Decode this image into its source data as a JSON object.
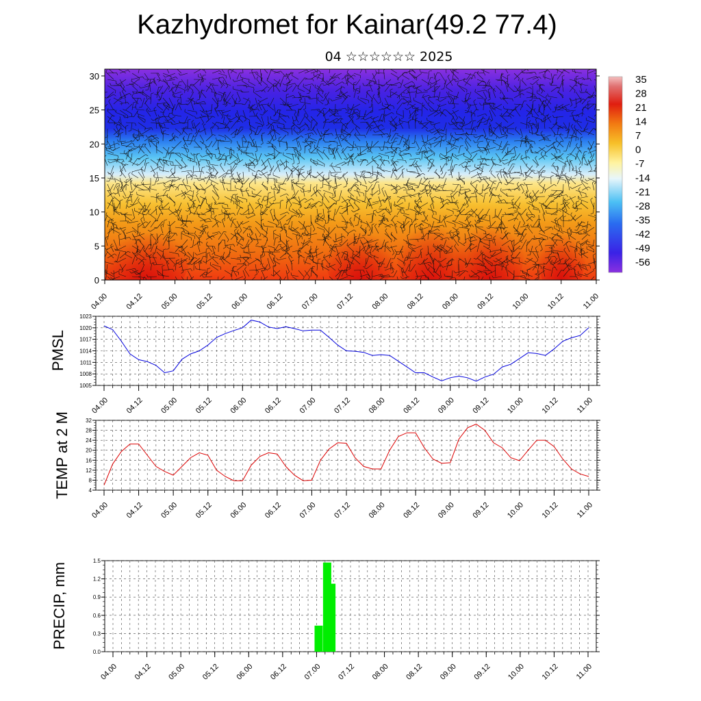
{
  "title": "Kazhydromet for Kainar(49.2 77.4)",
  "subtitle": "04 ☆☆☆☆☆☆ 2025",
  "time_labels": [
    "04.00",
    "04.12",
    "05.00",
    "05.12",
    "06.00",
    "06.12",
    "07.00",
    "07.12",
    "08.00",
    "08.12",
    "09.00",
    "09.12",
    "10.00",
    "10.12",
    "11.00"
  ],
  "chart_data": [
    {
      "type": "heatmap",
      "description_key": "vertical cross-section temperature with wind barbs",
      "y_ticks": [
        0,
        5,
        10,
        15,
        20,
        25,
        30
      ],
      "ylim": [
        0,
        31
      ],
      "colorbar_labels": [
        "35",
        "28",
        "21",
        "14",
        "7",
        "0",
        "-7",
        "-14",
        "-21",
        "-28",
        "-35",
        "-42",
        "-49",
        "-56"
      ],
      "x_tick_labels": [
        "04.00",
        "04.12",
        "05.00",
        "05.12",
        "06.00",
        "06.12",
        "07.00",
        "07.12",
        "08.00",
        "08.12",
        "09.00",
        "09.12",
        "10.00",
        "10.12",
        "11.00"
      ]
    },
    {
      "type": "line",
      "ylabel": "PMSL",
      "ylim": [
        1005,
        1023
      ],
      "y_ticks": [
        "1005",
        "1008",
        "1011",
        "1014",
        "1017",
        "1020",
        "1023"
      ],
      "color": "#0000dd",
      "x_tick_labels": [
        "04.00",
        "04.12",
        "05.00",
        "05.12",
        "06.00",
        "06.12",
        "07.00",
        "07.12",
        "08.00",
        "08.12",
        "09.00",
        "09.12",
        "10.00",
        "10.12",
        "11.00"
      ],
      "values": [
        1020.5,
        1019.5,
        1016.5,
        1013.2,
        1011.7,
        1011.2,
        1010.2,
        1008.3,
        1008.8,
        1011.8,
        1013.2,
        1014.0,
        1015.5,
        1017.5,
        1018.5,
        1019.3,
        1020.0,
        1022.0,
        1021.5,
        1020.2,
        1019.8,
        1020.3,
        1019.8,
        1019.2,
        1019.4,
        1019.4,
        1017.5,
        1015.5,
        1014.0,
        1013.9,
        1013.6,
        1012.8,
        1013.0,
        1012.8,
        1011.3,
        1009.8,
        1008.3,
        1008.3,
        1007.2,
        1006.2,
        1007.0,
        1007.4,
        1007.0,
        1006.1,
        1007.2,
        1007.9,
        1009.8,
        1010.5,
        1012.0,
        1013.5,
        1013.3,
        1012.8,
        1014.5,
        1016.5,
        1017.4,
        1018.0,
        1020.0
      ]
    },
    {
      "type": "line",
      "ylabel": "TEMP at 2 M",
      "ylim": [
        4,
        32
      ],
      "y_ticks": [
        "4",
        "8",
        "12",
        "16",
        "20",
        "24",
        "28",
        "32"
      ],
      "color": "#dd0000",
      "x_tick_labels": [
        "04.00",
        "04.12",
        "05.00",
        "05.12",
        "06.00",
        "06.12",
        "07.00",
        "07.12",
        "08.00",
        "08.12",
        "09.00",
        "09.12",
        "10.00",
        "10.12",
        "11.00"
      ],
      "values": [
        6,
        14.5,
        19.5,
        22.5,
        22.5,
        18.0,
        13.5,
        11.5,
        10.0,
        13.5,
        17.0,
        19.0,
        18.0,
        12.0,
        9.5,
        7.8,
        7.8,
        14.0,
        17.5,
        19.0,
        18.5,
        13.5,
        10.0,
        7.8,
        8.0,
        16.0,
        20.5,
        23.0,
        22.8,
        17.0,
        13.5,
        12.5,
        12.5,
        20.0,
        25.5,
        27.0,
        27.0,
        21.0,
        16.5,
        14.8,
        15.0,
        24.5,
        29.0,
        30.5,
        28.0,
        23.0,
        21.0,
        17.0,
        15.8,
        20.0,
        24.0,
        24.0,
        21.5,
        16.5,
        12.5,
        10.5,
        9.5
      ]
    },
    {
      "type": "bar",
      "ylabel": "PRECIP, mm",
      "ylim": [
        0,
        1.5
      ],
      "y_ticks": [
        "0.0",
        "0.3",
        "0.6",
        "0.9",
        "1.2",
        "1.5"
      ],
      "color": "#00ee00",
      "x_tick_labels": [
        "04.00",
        "04.12",
        "05.00",
        "05.12",
        "06.00",
        "06.12",
        "07.00",
        "07.12",
        "08.00",
        "08.12",
        "09.00",
        "09.12",
        "10.00",
        "10.12",
        "11.00"
      ],
      "bars": [
        {
          "time": 72.75,
          "value": 0.43
        },
        {
          "time": 75.75,
          "value": 1.47
        },
        {
          "time": 77.25,
          "value": 1.12
        }
      ]
    }
  ]
}
